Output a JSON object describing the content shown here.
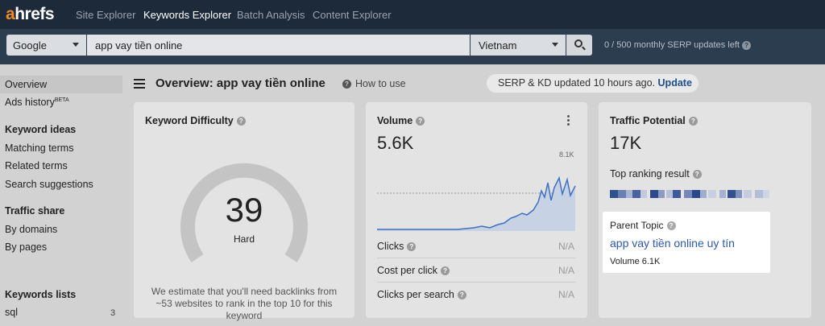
{
  "nav": {
    "logo_a": "a",
    "logo_rest": "hrefs",
    "links": [
      "Site Explorer",
      "Keywords Explorer",
      "Batch Analysis",
      "Content Explorer"
    ],
    "active_index": 1
  },
  "search": {
    "engine": "Google",
    "keyword": "app vay tiền online",
    "country": "Vietnam",
    "serp_left": "0 / 500 monthly SERP updates left"
  },
  "sidebar": {
    "overview": "Overview",
    "ads_history": "Ads history",
    "beta": "BETA",
    "keyword_ideas": "Keyword ideas",
    "matching_terms": "Matching terms",
    "related_terms": "Related terms",
    "search_suggestions": "Search suggestions",
    "traffic_share": "Traffic share",
    "by_domains": "By domains",
    "by_pages": "By pages",
    "keywords_lists": "Keywords lists",
    "list_name": "sql",
    "list_count": "3"
  },
  "header": {
    "title": "Overview: app vay tiền online",
    "how_to_use": "How to use",
    "update_text": "SERP & KD updated 10 hours ago.",
    "update_link": "Update"
  },
  "kd": {
    "title": "Keyword Difficulty",
    "value": "39",
    "label": "Hard",
    "note": "We estimate that you'll need backlinks from ~53 websites to rank in the top 10 for this keyword"
  },
  "volume": {
    "title": "Volume",
    "value": "5.6K",
    "chart_max_label": "8.1K",
    "metrics": [
      {
        "label": "Clicks",
        "value": "N/A"
      },
      {
        "label": "Cost per click",
        "value": "N/A"
      },
      {
        "label": "Clicks per search",
        "value": "N/A"
      }
    ]
  },
  "traffic": {
    "title": "Traffic Potential",
    "value": "17K",
    "top_ranking": "Top ranking result",
    "parent_topic_label": "Parent Topic",
    "parent_topic_link": "app vay tiền online uy tín",
    "parent_volume": "Volume 6.1K"
  },
  "colors": {
    "nav_bg": "#1c2a3a",
    "search_bg": "#2d3d50",
    "accent_orange": "#f08a24",
    "link_blue": "#2b58b3",
    "chart_blue": "#3d6fc4"
  }
}
